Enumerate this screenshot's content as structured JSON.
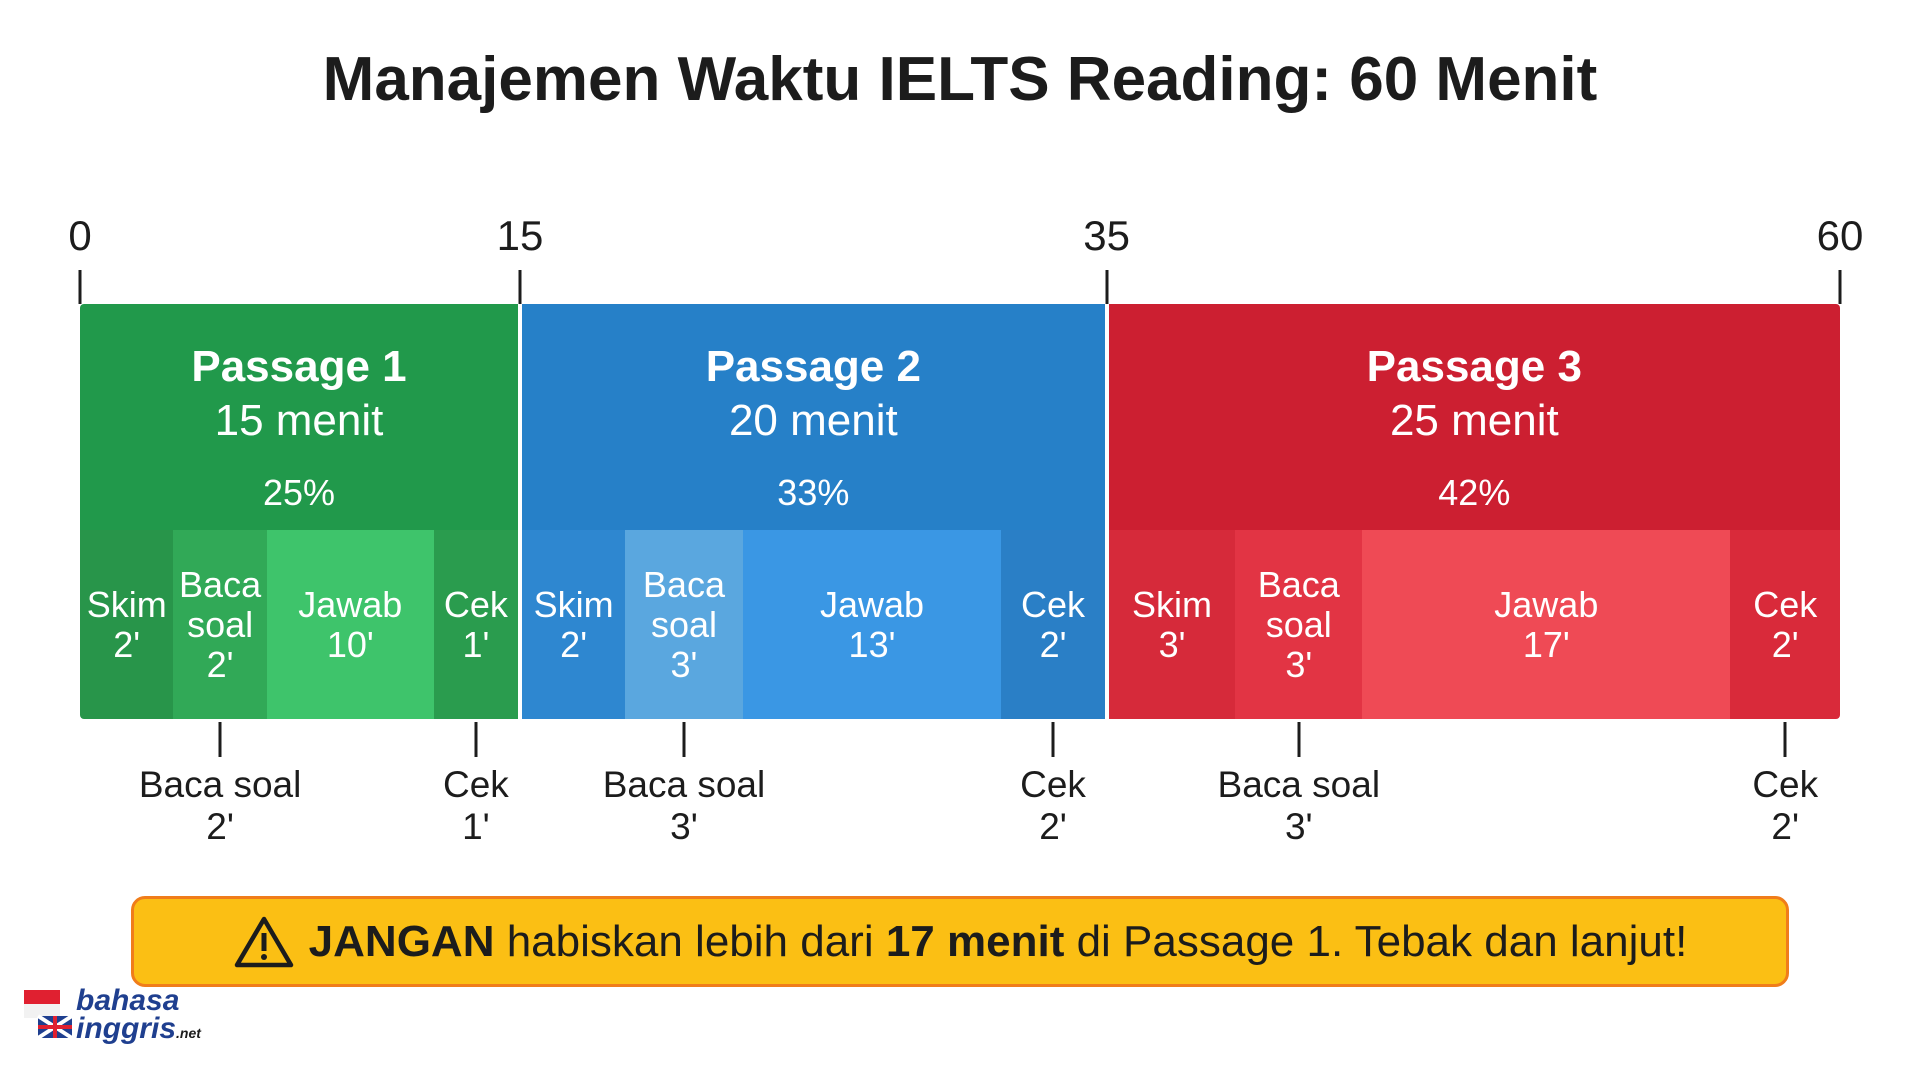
{
  "title": "Manajemen Waktu IELTS Reading: 60 Menit",
  "scale": {
    "lim": [
      0,
      60
    ],
    "ticks": [
      0,
      15,
      35,
      60
    ]
  },
  "passages": [
    {
      "name": "Passage 1",
      "duration": "15 menit",
      "share": "25%",
      "color": "#21994b",
      "parts": [
        {
          "label": "Skim",
          "minutes": {
            "value": 2,
            "label": "2'"
          },
          "color": "#28954a"
        },
        {
          "label": "Baca soal",
          "minutes": {
            "value": 2,
            "label": "2'"
          },
          "color": "#31a957",
          "callout": true
        },
        {
          "label": "Jawab",
          "minutes": {
            "value": 10,
            "label": "10'"
          },
          "color": "#3ec46b"
        },
        {
          "label": "Cek",
          "minutes": {
            "value": 1,
            "label": "1'"
          },
          "color": "#2a9c4e",
          "callout": true
        }
      ]
    },
    {
      "name": "Passage 2",
      "duration": "20 menit",
      "share": "33%",
      "color": "#2680c8",
      "parts": [
        {
          "label": "Skim",
          "minutes": {
            "value": 2,
            "label": "2'"
          },
          "color": "#2e87d0"
        },
        {
          "label": "Baca soal",
          "minutes": {
            "value": 3,
            "label": "3'"
          },
          "color": "#5aa7df",
          "callout": true
        },
        {
          "label": "Jawab",
          "minutes": {
            "value": 13,
            "label": "13'"
          },
          "color": "#3a97e4"
        },
        {
          "label": "Cek",
          "minutes": {
            "value": 2,
            "label": "2'"
          },
          "color": "#2a7fc6",
          "callout": true
        }
      ]
    },
    {
      "name": "Passage 3",
      "duration": "25 menit",
      "share": "42%",
      "color": "#cc1f31",
      "parts": [
        {
          "label": "Skim",
          "minutes": {
            "value": 3,
            "label": "3'"
          },
          "color": "#d62a3a"
        },
        {
          "label": "Baca soal",
          "minutes": {
            "value": 3,
            "label": "3'"
          },
          "color": "#e23444",
          "callout": true
        },
        {
          "label": "Jawab",
          "minutes": {
            "value": 17,
            "label": "17'"
          },
          "color": "#ef4a55"
        },
        {
          "label": "Cek",
          "minutes": {
            "value": 2,
            "label": "2'"
          },
          "color": "#d92a3a",
          "callout": true
        }
      ]
    }
  ],
  "warning": {
    "runs": [
      {
        "text": "JANGAN",
        "bold": true
      },
      {
        "text": " habiskan lebih dari ",
        "bold": false
      },
      {
        "text": "17 menit",
        "bold": true
      },
      {
        "text": " di Passage 1. Tebak dan lanjut!",
        "bold": false
      }
    ]
  },
  "logo": {
    "line1": "bahasa",
    "line2": "inggris",
    "suffix": ".net"
  }
}
